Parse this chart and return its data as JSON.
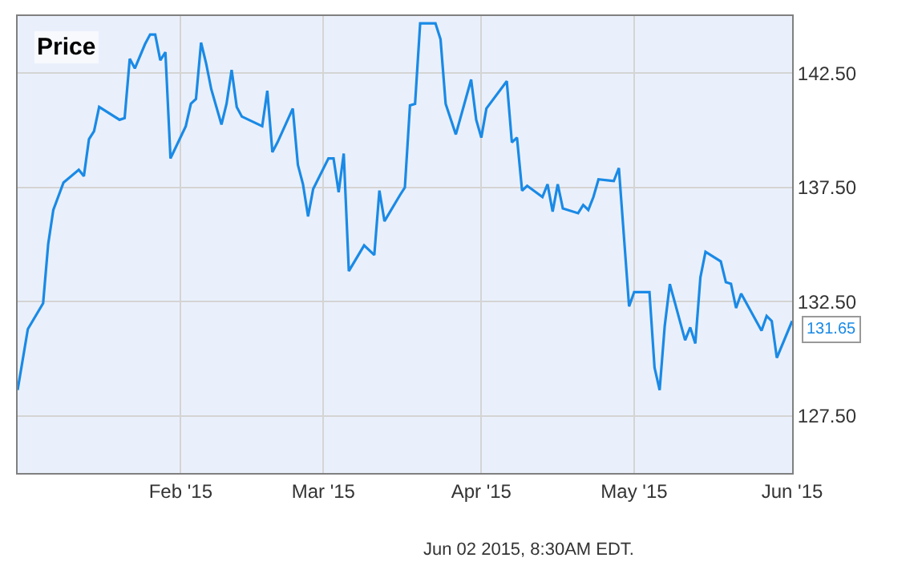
{
  "chart_data": {
    "type": "line",
    "title": "Price",
    "x": [
      "2014-12-31",
      "2015-01-02",
      "2015-01-05",
      "2015-01-06",
      "2015-01-07",
      "2015-01-09",
      "2015-01-12",
      "2015-01-13",
      "2015-01-14",
      "2015-01-15",
      "2015-01-16",
      "2015-01-20",
      "2015-01-21",
      "2015-01-22",
      "2015-01-23",
      "2015-01-25",
      "2015-01-26",
      "2015-01-27",
      "2015-01-28",
      "2015-01-29",
      "2015-01-30",
      "2015-02-02",
      "2015-02-03",
      "2015-02-04",
      "2015-02-05",
      "2015-02-06",
      "2015-02-07",
      "2015-02-09",
      "2015-02-10",
      "2015-02-11",
      "2015-02-12",
      "2015-02-13",
      "2015-02-17",
      "2015-02-18",
      "2015-02-19",
      "2015-02-20",
      "2015-02-23",
      "2015-02-24",
      "2015-02-25",
      "2015-02-26",
      "2015-02-27",
      "2015-03-02",
      "2015-03-03",
      "2015-03-04",
      "2015-03-05",
      "2015-03-06",
      "2015-03-09",
      "2015-03-11",
      "2015-03-12",
      "2015-03-13",
      "2015-03-16",
      "2015-03-17",
      "2015-03-18",
      "2015-03-19",
      "2015-03-20",
      "2015-03-23",
      "2015-03-24",
      "2015-03-25",
      "2015-03-27",
      "2015-03-30",
      "2015-03-31",
      "2015-04-01",
      "2015-04-02",
      "2015-04-06",
      "2015-04-07",
      "2015-04-08",
      "2015-04-09",
      "2015-04-10",
      "2015-04-13",
      "2015-04-14",
      "2015-04-15",
      "2015-04-16",
      "2015-04-17",
      "2015-04-20",
      "2015-04-21",
      "2015-04-22",
      "2015-04-23",
      "2015-04-24",
      "2015-04-27",
      "2015-04-28",
      "2015-04-30",
      "2015-05-01",
      "2015-05-04",
      "2015-05-05",
      "2015-05-06",
      "2015-05-07",
      "2015-05-08",
      "2015-05-11",
      "2015-05-12",
      "2015-05-13",
      "2015-05-14",
      "2015-05-15",
      "2015-05-18",
      "2015-05-19",
      "2015-05-20",
      "2015-05-21",
      "2015-05-22",
      "2015-05-26",
      "2015-05-27",
      "2015-05-28",
      "2015-05-29",
      "2015-06-01"
    ],
    "series": [
      {
        "color": "#1a8ae6",
        "values": [
          128.63,
          131.3,
          132.43,
          135.03,
          136.51,
          137.71,
          138.27,
          137.99,
          139.61,
          139.96,
          141.02,
          140.46,
          140.53,
          143.13,
          142.71,
          143.77,
          144.19,
          144.19,
          143.06,
          143.42,
          138.77,
          140.18,
          141.16,
          141.37,
          143.84,
          142.92,
          141.8,
          140.25,
          141.16,
          142.64,
          141.02,
          140.6,
          140.18,
          141.73,
          139.04,
          139.47,
          140.95,
          138.49,
          137.64,
          136.23,
          137.43,
          138.77,
          138.77,
          137.29,
          138.98,
          133.84,
          134.96,
          134.54,
          137.36,
          136.02,
          137.15,
          137.5,
          141.09,
          141.16,
          144.68,
          144.68,
          143.98,
          141.16,
          139.82,
          142.22,
          140.46,
          139.68,
          140.95,
          142.15,
          139.47,
          139.68,
          137.36,
          137.57,
          137.08,
          137.64,
          136.44,
          137.64,
          136.58,
          136.37,
          136.73,
          136.51,
          137.08,
          137.85,
          137.78,
          138.35,
          132.29,
          132.92,
          132.92,
          129.61,
          128.63,
          131.44,
          133.27,
          130.81,
          131.37,
          130.67,
          133.56,
          134.68,
          134.26,
          133.35,
          133.28,
          132.22,
          132.85,
          131.23,
          131.87,
          131.65,
          130.04,
          131.65
        ]
      }
    ],
    "xlim": [
      "2014-12-31",
      "2015-06-01"
    ],
    "xticks": [
      {
        "value": "2015-02-01",
        "label": "Feb '15"
      },
      {
        "value": "2015-03-01",
        "label": "Mar '15"
      },
      {
        "value": "2015-04-01",
        "label": "Apr '15"
      },
      {
        "value": "2015-05-01",
        "label": "May '15"
      },
      {
        "value": "2015-06-01",
        "label": "Jun '15"
      }
    ],
    "ylim": [
      125.0,
      145.0
    ],
    "yticks": [
      {
        "value": 127.5,
        "label": "127.50"
      },
      {
        "value": 132.5,
        "label": "132.50"
      },
      {
        "value": 137.5,
        "label": "137.50"
      },
      {
        "value": 142.5,
        "label": "142.50"
      }
    ],
    "grid": true,
    "marker": "none",
    "line_style": "solid",
    "annotations": [
      {
        "text": "131.65",
        "x": "2015-06-01",
        "y": 131.65
      },
      "Jun 02 2015, 8:30AM EDT."
    ]
  }
}
